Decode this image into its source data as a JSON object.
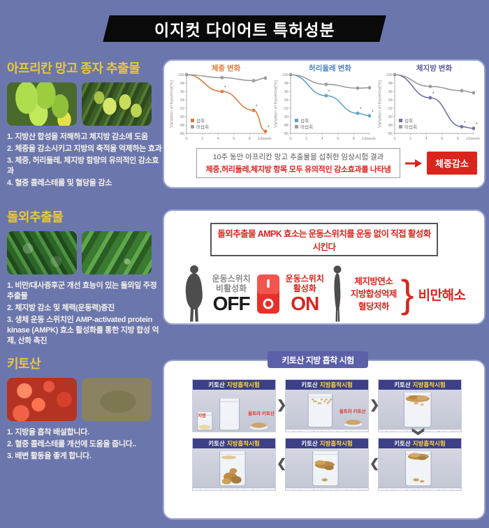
{
  "page": {
    "title": "이지컷 다이어트 특허성분"
  },
  "colors": {
    "background": "#6b76ad",
    "accent_red": "#d9251d",
    "heading_yellow": "#e9c83a",
    "badge_purple": "#5b60a8"
  },
  "sections": [
    {
      "heading": "아프리칸 망고 종자 추출물",
      "photos": [
        "green-mango-cluster",
        "mango-tree"
      ],
      "bullets": [
        "1. 지방산 합성을 저해하고 체지방 감소에 도움",
        "2. 체중을 감소시키고 지방의 축적을 억제하는 효과",
        "3. 체중, 허리둘레, 체지방 함량의 유의적인 감소효과",
        "4. 혈중 콜레스테롤 및 혈당을 감소"
      ]
    },
    {
      "heading": "돌외추출물",
      "photos": [
        "gynostemma-leaves-1",
        "gynostemma-leaves-2"
      ],
      "bullets": [
        "1. 비만/대사증후군 개선 효능이 있는 돌외잎 주정추출물",
        "2. 체지방 감소 및 체력(운동력)증진",
        "3. 생체 운동 스위치인 AMP-activated protein kinase (AMPK) 효소 활성화를 통한 지방 합성 억제, 산화 촉진"
      ]
    },
    {
      "heading": "키토산",
      "photos": [
        "shrimp",
        "crab"
      ],
      "bullets": [
        "1. 지방을 흡착 배설합니다.",
        "2. 혈중 콜레스테롤 개선에 도움을 줍니다..",
        "3. 배변 활동을 좋게 합니다."
      ]
    }
  ],
  "panel1": {
    "caption_line1": "10주 동안 아프리칸 망고 추출물을 섭취한 임상시험 결과",
    "caption_line2": "체중,허리둘레,체지방 항목 모두 유의적인 감소효과를 나타냄",
    "result_label": "체중감소"
  },
  "panel2": {
    "title": "돌외추출물 AMPK 효소는 운동스위치를 운동 없이 직접 활성화 시킨다",
    "off_label_1": "운동스위치",
    "off_label_2": "비활성화",
    "off_big": "OFF",
    "on_label_1": "운동스위치",
    "on_label_2": "활성화",
    "on_big": "ON",
    "effects": [
      "체지방연소",
      "지방합성억제",
      "혈당저하"
    ],
    "result": "비만해소"
  },
  "panel3": {
    "badge": "키토산 지방 흡착 시험",
    "cards": [
      {
        "title_white": "키토산",
        "title_yellow": "지방흡착시험",
        "labels": [
          "지방",
          "울트라 키토산"
        ],
        "caption": "",
        "stage": 1
      },
      {
        "title_white": "키토산",
        "title_yellow": "지방흡착시험",
        "labels": [
          "울트라 키토산"
        ],
        "caption": "물 700ml에 지방 200ml을 혼합 후 키토산 50g을 넣고 지방흡착 관찰",
        "stage": 2
      },
      {
        "title_white": "키토산",
        "title_yellow": "지방흡착시험",
        "labels": [],
        "caption": "물 700ml에 지방 200ml을 혼합 후 키토산 50g을 넣고 지방흡착 관찰",
        "stage": 3
      },
      {
        "title_white": "키토산",
        "title_yellow": "지방흡착시험",
        "labels": [],
        "caption": "물 700ml에 지방 200ml을 혼합 후 키토산 50g을 넣고 지방흡착 관찰",
        "stage": 6
      },
      {
        "title_white": "키토산",
        "title_yellow": "지방흡착시험",
        "labels": [],
        "caption": "물 700ml에 지방 200ml을 혼합 후 키토산 50g을 넣고 지방흡착 관찰",
        "stage": 5
      },
      {
        "title_white": "키토산",
        "title_yellow": "지방흡착시험",
        "labels": [],
        "caption": "물 700ml에 지방 200ml을 혼합 후 키토산 50g을 넣고 지방흡착 관찰",
        "stage": 4
      }
    ]
  },
  "chart_data": [
    {
      "type": "line",
      "title": "체중 변화",
      "title_color": "#e07b39",
      "ylabel": "Variation of baseline(%)",
      "xticks": [
        0,
        2,
        4,
        6,
        8,
        10
      ],
      "xtick_last_suffix": "weeks",
      "ylim": [
        86,
        100
      ],
      "yticks": [
        86,
        88,
        90,
        92,
        94,
        96,
        98,
        100
      ],
      "legend_position": "bottom-left",
      "grid": false,
      "series": [
        {
          "name": "섭취",
          "color": "#e07b39",
          "x": [
            0,
            4.5,
            8.5,
            10
          ],
          "y": [
            100,
            96,
            91.5,
            86.5
          ],
          "significance": true
        },
        {
          "name": "미섭취",
          "color": "#9b9b9b",
          "x": [
            0,
            4.5,
            8.5,
            10
          ],
          "y": [
            100,
            99.3,
            98.6,
            99.2
          ],
          "significance": false
        }
      ]
    },
    {
      "type": "line",
      "title": "허리둘레 변화",
      "title_color": "#4f86c0",
      "ylabel": "Variation of baseline(%)",
      "xticks": [
        0,
        2,
        4,
        6,
        8,
        10
      ],
      "xtick_last_suffix": "weeks",
      "ylim": [
        86,
        100
      ],
      "yticks": [
        86,
        88,
        90,
        92,
        94,
        96,
        98,
        100
      ],
      "legend_position": "bottom-left",
      "grid": false,
      "series": [
        {
          "name": "섭취",
          "color": "#5fa3c8",
          "x": [
            0,
            4.5,
            8.5,
            10
          ],
          "y": [
            100,
            95,
            90.8,
            90.2
          ],
          "significance": true
        },
        {
          "name": "미섭취",
          "color": "#9b9b9b",
          "x": [
            0,
            4.5,
            8.5,
            10
          ],
          "y": [
            100,
            97.7,
            96.8,
            96.9
          ],
          "significance": false
        }
      ]
    },
    {
      "type": "line",
      "title": "체지방 변화",
      "title_color": "#5d5fa0",
      "ylabel": "Variation of baseline(%)",
      "xticks": [
        0,
        2,
        4,
        6,
        8,
        10
      ],
      "xtick_last_suffix": "weeks",
      "ylim": [
        86,
        100
      ],
      "yticks": [
        86,
        88,
        90,
        92,
        94,
        96,
        98,
        100
      ],
      "legend_position": "bottom-left",
      "grid": false,
      "series": [
        {
          "name": "섭취",
          "color": "#6f72a8",
          "x": [
            0,
            4.5,
            8.5,
            10
          ],
          "y": [
            100,
            94.5,
            87.6,
            87.2
          ],
          "significance": true
        },
        {
          "name": "미섭취",
          "color": "#9b9b9b",
          "x": [
            0,
            4.5,
            8.5,
            10
          ],
          "y": [
            100,
            97.2,
            96.2,
            95.7
          ],
          "significance": false
        }
      ]
    }
  ]
}
